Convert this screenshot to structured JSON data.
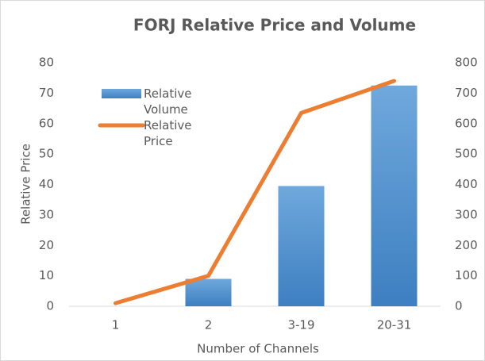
{
  "chart_data": {
    "type": "combo",
    "title": "FORJ Relative Price and Volume",
    "x_label": "Number of Channels",
    "y_label": "Relative Price",
    "categories": [
      "1",
      "2",
      "3-19",
      "20-31"
    ],
    "series": [
      {
        "name": "Relative Volume",
        "type": "bar",
        "color": "#5b9bd5",
        "axis": "y2",
        "values": [
          0,
          90,
          395,
          725
        ]
      },
      {
        "name": "Relative Price",
        "type": "line",
        "color": "#ed7d31",
        "values": [
          1,
          10,
          63.5,
          74
        ]
      }
    ],
    "ylim": [
      0,
      80
    ],
    "yticks": [
      0,
      10,
      20,
      30,
      40,
      50,
      60,
      70,
      80
    ],
    "y2lim": [
      0,
      800
    ],
    "y2ticks": [
      0,
      100,
      200,
      300,
      400,
      500,
      600,
      700,
      800
    ],
    "legend": "top-left",
    "grid": false
  }
}
